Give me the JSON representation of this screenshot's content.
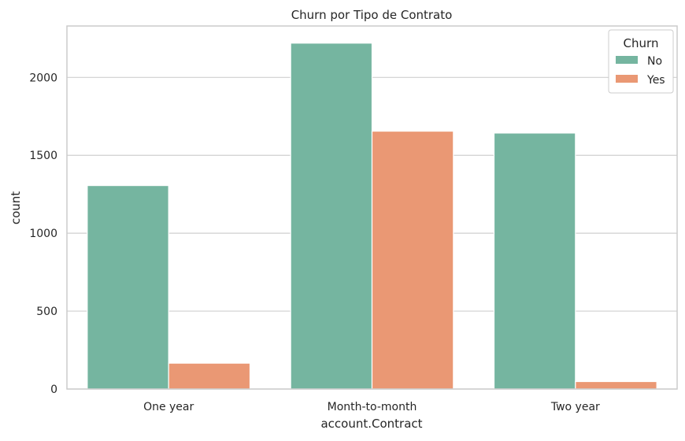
{
  "chart_data": {
    "type": "bar",
    "title": "Churn por Tipo de Contrato",
    "xlabel": "account.Contract",
    "ylabel": "count",
    "categories": [
      "One year",
      "Month-to-month",
      "Two year"
    ],
    "series": [
      {
        "name": "No",
        "values": [
          1306,
          2220,
          1643
        ]
      },
      {
        "name": "Yes",
        "values": [
          166,
          1655,
          48
        ]
      }
    ],
    "ylim": [
      0,
      2330
    ],
    "yticks": [
      0,
      500,
      1000,
      1500,
      2000
    ],
    "grid": "horizontal",
    "legend": {
      "title": "Churn",
      "placement": "top-right"
    },
    "colors": {
      "No": "#75b5a0",
      "Yes": "#ea9874",
      "grid": "#cfcfcf",
      "axes": "#cccccc"
    }
  }
}
